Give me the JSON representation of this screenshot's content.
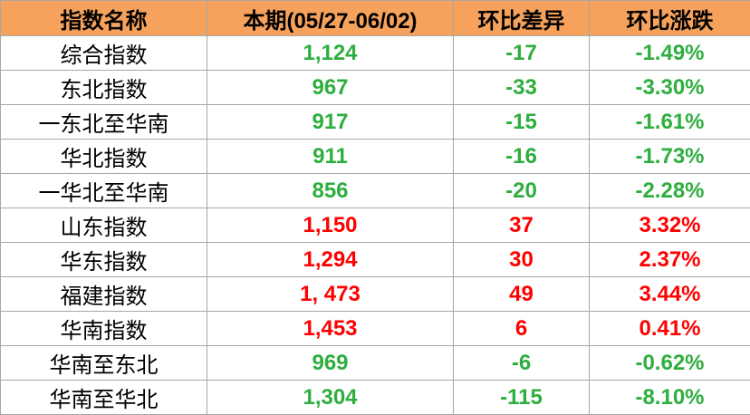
{
  "table": {
    "header": [
      "指数名称",
      "本期(05/27-06/02)",
      "环比差异",
      "环比涨跌"
    ],
    "colors": {
      "down": "#2eae3e",
      "up": "#ff0000"
    },
    "rows": [
      {
        "trend": "down",
        "cells": [
          "综合指数",
          "1,124",
          "-17",
          "-1.49%"
        ]
      },
      {
        "trend": "down",
        "cells": [
          "东北指数",
          "967",
          "-33",
          "-3.30%"
        ]
      },
      {
        "trend": "down",
        "cells": [
          "一东北至华南",
          "917",
          "-15",
          "-1.61%"
        ]
      },
      {
        "trend": "down",
        "cells": [
          "华北指数",
          "911",
          "-16",
          "-1.73%"
        ]
      },
      {
        "trend": "down",
        "cells": [
          "一华北至华南",
          "856",
          "-20",
          "-2.28%"
        ]
      },
      {
        "trend": "up",
        "cells": [
          "山东指数",
          "1,150",
          "37",
          "3.32%"
        ]
      },
      {
        "trend": "up",
        "cells": [
          "华东指数",
          "1,294",
          "30",
          "2.37%"
        ]
      },
      {
        "trend": "up",
        "cells": [
          "福建指数",
          "1, 473",
          "49",
          "3.44%"
        ]
      },
      {
        "trend": "up",
        "cells": [
          "华南指数",
          "1,453",
          "6",
          "0.41%"
        ]
      },
      {
        "trend": "down",
        "cells": [
          "华南至东北",
          "969",
          "-6",
          "-0.62%"
        ]
      },
      {
        "trend": "down",
        "cells": [
          "华南至华北",
          "1,304",
          "-115",
          "-8.10%"
        ]
      }
    ]
  }
}
